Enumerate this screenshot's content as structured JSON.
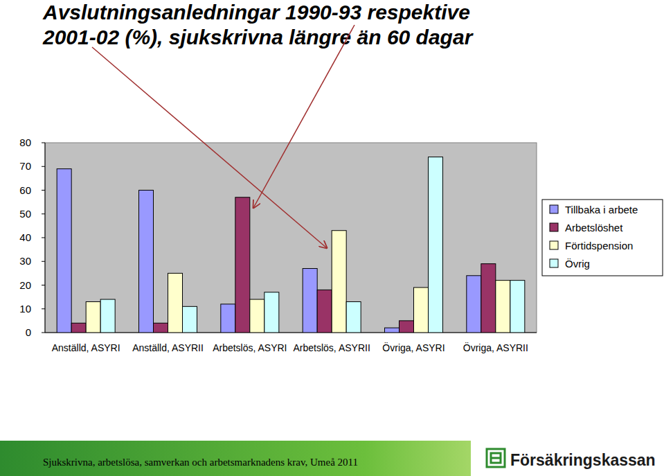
{
  "chart_data": {
    "type": "bar",
    "title": [
      "Avslutningsanledningar 1990-93 respektive",
      "2001-02 (%), sjukskrivna längre än 60 dagar"
    ],
    "categories": [
      "Anställd, ASYRI",
      "Anställd, ASYRII",
      "Arbetslös, ASYRI",
      "Arbetslös, ASYRII",
      "Övriga, ASYRI",
      "Övriga, ASYRII"
    ],
    "series": [
      {
        "name": "Tillbaka i arbete",
        "color": "#9999ff",
        "values": [
          69,
          60,
          12,
          27,
          2,
          24
        ]
      },
      {
        "name": "Arbetslöshet",
        "color": "#993366",
        "values": [
          4,
          4,
          57,
          18,
          5,
          29
        ]
      },
      {
        "name": "Förtidspension",
        "color": "#ffffcc",
        "values": [
          13,
          25,
          14,
          43,
          19,
          22
        ]
      },
      {
        "name": "Övrig",
        "color": "#ccffff",
        "values": [
          14,
          11,
          17,
          13,
          74,
          22
        ]
      }
    ],
    "ylim": [
      0,
      80
    ],
    "yticks": [
      0,
      10,
      20,
      30,
      40,
      50,
      60,
      70,
      80
    ],
    "grid": false,
    "legend": "right",
    "footer": "Sjukskrivna, arbetslösa, samverkan och arbetsmarknadens krav, Umeå 2011",
    "logo": "Försäkringskassan"
  }
}
